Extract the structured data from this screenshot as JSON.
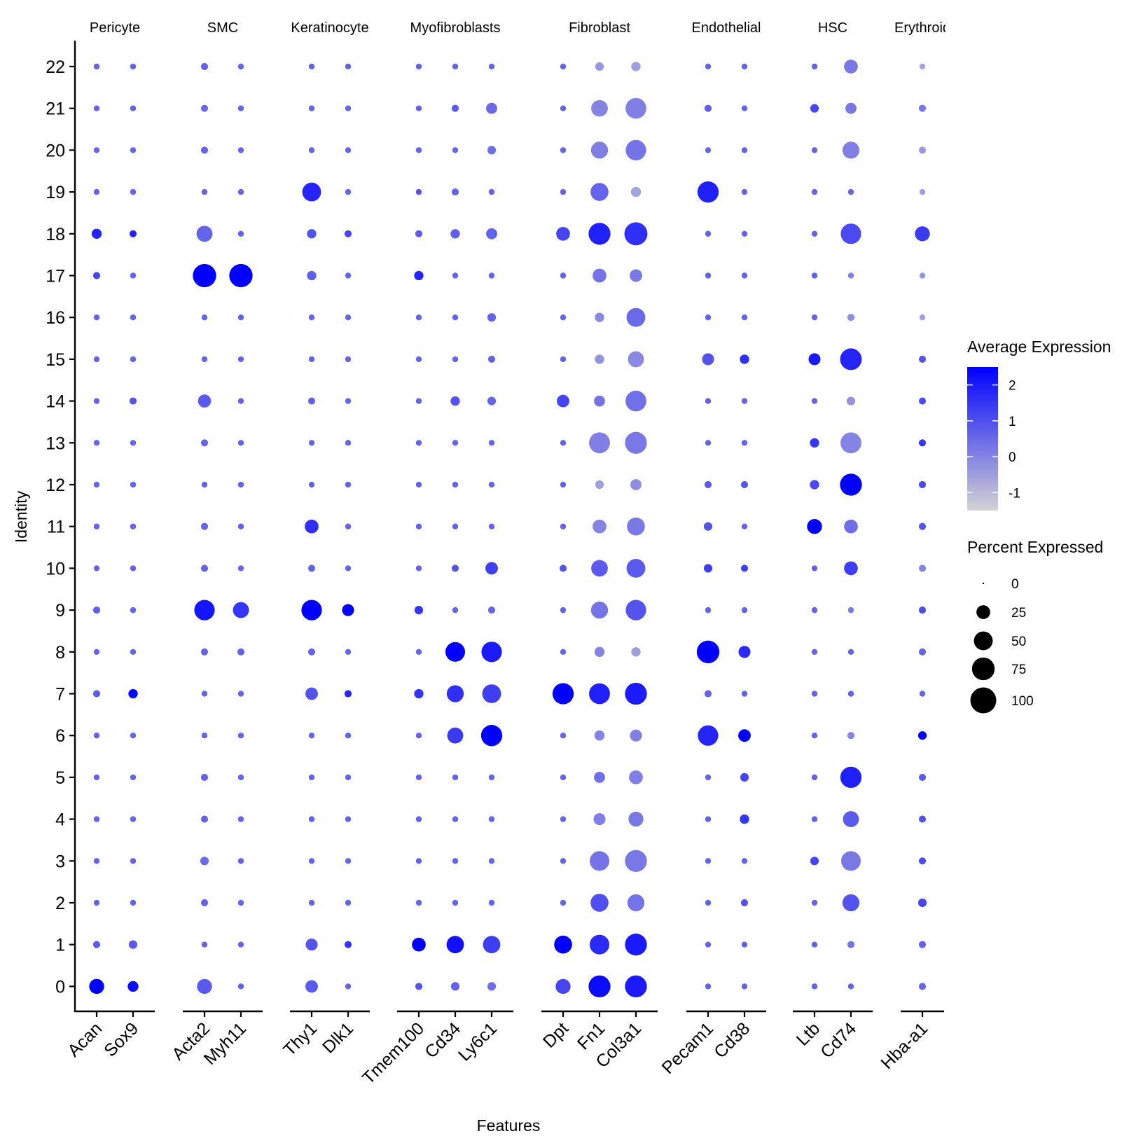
{
  "chart_data": {
    "type": "dotplot",
    "xlabel": "Features",
    "ylabel": "Identity",
    "identities": [
      "0",
      "1",
      "2",
      "3",
      "4",
      "5",
      "6",
      "7",
      "8",
      "9",
      "10",
      "11",
      "12",
      "13",
      "14",
      "15",
      "16",
      "17",
      "18",
      "19",
      "20",
      "21",
      "22"
    ],
    "groups": [
      {
        "label": "Pericyte",
        "features": [
          "Acan",
          "Sox9"
        ]
      },
      {
        "label": "SMC",
        "features": [
          "Acta2",
          "Myh11"
        ]
      },
      {
        "label": "Keratinocyte",
        "features": [
          "Thy1",
          "Dlk1"
        ]
      },
      {
        "label": "Myofibroblasts",
        "features": [
          "Tmem100",
          "Cd34",
          "Ly6c1"
        ]
      },
      {
        "label": "Fibroblast",
        "features": [
          "Dpt",
          "Fn1",
          "Col3a1"
        ]
      },
      {
        "label": "Endothelial",
        "features": [
          "Pecam1",
          "Cd38"
        ]
      },
      {
        "label": "HSC",
        "features": [
          "Ltb",
          "Cd74"
        ]
      },
      {
        "label": "Erythroid",
        "features": [
          "Hba-a1"
        ]
      }
    ],
    "features": [
      "Acan",
      "Sox9",
      "Acta2",
      "Myh11",
      "Thy1",
      "Dlk1",
      "Tmem100",
      "Cd34",
      "Ly6c1",
      "Dpt",
      "Fn1",
      "Col3a1",
      "Pecam1",
      "Cd38",
      "Ltb",
      "Cd74",
      "Hba-a1"
    ],
    "pct_expressed": [
      [
        30,
        14,
        30,
        3,
        20,
        3,
        5,
        8,
        8,
        30,
        70,
        70,
        3,
        3,
        3,
        3,
        5
      ],
      [
        5,
        8,
        3,
        3,
        18,
        5,
        25,
        42,
        42,
        45,
        55,
        70,
        3,
        3,
        3,
        5,
        5
      ],
      [
        3,
        3,
        5,
        3,
        3,
        3,
        3,
        3,
        3,
        3,
        45,
        40,
        3,
        5,
        3,
        40,
        8
      ],
      [
        3,
        3,
        8,
        3,
        3,
        3,
        3,
        3,
        3,
        3,
        55,
        70,
        3,
        3,
        8,
        55,
        5
      ],
      [
        3,
        3,
        5,
        3,
        3,
        3,
        3,
        3,
        3,
        3,
        18,
        30,
        3,
        10,
        3,
        35,
        5
      ],
      [
        3,
        3,
        5,
        3,
        3,
        3,
        3,
        3,
        3,
        3,
        15,
        25,
        3,
        8,
        3,
        65,
        5
      ],
      [
        3,
        3,
        3,
        3,
        3,
        3,
        3,
        35,
        65,
        3,
        12,
        18,
        60,
        20,
        3,
        5,
        8
      ],
      [
        5,
        10,
        3,
        3,
        20,
        5,
        10,
        40,
        50,
        65,
        63,
        70,
        5,
        3,
        3,
        3,
        3
      ],
      [
        3,
        3,
        5,
        5,
        5,
        3,
        3,
        55,
        60,
        3,
        12,
        10,
        75,
        18,
        3,
        3,
        5
      ],
      [
        5,
        3,
        60,
        35,
        60,
        18,
        8,
        3,
        5,
        3,
        40,
        60,
        3,
        3,
        3,
        3,
        5
      ],
      [
        3,
        3,
        5,
        3,
        5,
        3,
        3,
        5,
        20,
        5,
        38,
        50,
        8,
        5,
        3,
        25,
        5
      ],
      [
        3,
        3,
        5,
        3,
        25,
        3,
        3,
        3,
        3,
        3,
        25,
        45,
        8,
        3,
        30,
        25,
        5
      ],
      [
        3,
        3,
        3,
        3,
        3,
        3,
        3,
        3,
        3,
        3,
        8,
        15,
        5,
        5,
        10,
        70,
        5
      ],
      [
        3,
        3,
        5,
        3,
        3,
        3,
        3,
        3,
        3,
        3,
        63,
        70,
        3,
        3,
        10,
        63,
        5
      ],
      [
        3,
        5,
        22,
        3,
        5,
        3,
        3,
        10,
        8,
        20,
        15,
        62,
        3,
        3,
        3,
        8,
        5
      ],
      [
        3,
        3,
        3,
        3,
        3,
        3,
        3,
        3,
        5,
        3,
        10,
        35,
        18,
        10,
        18,
        68,
        5
      ],
      [
        3,
        3,
        3,
        3,
        3,
        3,
        3,
        3,
        8,
        3,
        10,
        50,
        3,
        3,
        3,
        5,
        3
      ],
      [
        5,
        3,
        80,
        80,
        10,
        3,
        10,
        3,
        3,
        3,
        25,
        20,
        3,
        3,
        3,
        3,
        3
      ],
      [
        12,
        5,
        35,
        3,
        10,
        5,
        5,
        10,
        15,
        25,
        70,
        78,
        3,
        3,
        3,
        60,
        30
      ],
      [
        3,
        3,
        3,
        3,
        50,
        3,
        3,
        5,
        3,
        3,
        45,
        12,
        65,
        3,
        3,
        3,
        3
      ],
      [
        3,
        3,
        5,
        3,
        3,
        3,
        3,
        3,
        8,
        3,
        40,
        60,
        3,
        3,
        3,
        40,
        5
      ],
      [
        3,
        3,
        5,
        3,
        3,
        3,
        3,
        5,
        15,
        3,
        38,
        62,
        5,
        3,
        8,
        15,
        5
      ],
      [
        3,
        3,
        5,
        3,
        3,
        3,
        3,
        3,
        3,
        3,
        8,
        10,
        3,
        3,
        3,
        25,
        3
      ]
    ],
    "avg_expression": [
      [
        2.5,
        2.3,
        0.8,
        0.6,
        0.8,
        0.6,
        0.9,
        0.6,
        0.4,
        1.2,
        2.3,
        2.0,
        0.6,
        0.6,
        0.6,
        0.6,
        0.6
      ],
      [
        0.8,
        0.8,
        0.6,
        0.6,
        0.9,
        1.5,
        2.5,
        2.2,
        1.3,
        2.5,
        1.7,
        2.0,
        0.6,
        0.6,
        0.6,
        0.3,
        0.6
      ],
      [
        0.6,
        0.6,
        0.6,
        0.6,
        0.6,
        0.6,
        0.6,
        0.6,
        0.6,
        0.6,
        1.0,
        0.3,
        0.6,
        0.9,
        0.6,
        0.9,
        1.2
      ],
      [
        0.6,
        0.6,
        0.5,
        0.6,
        0.6,
        0.6,
        0.6,
        0.6,
        0.6,
        0.6,
        0.3,
        0.2,
        0.6,
        0.6,
        1.2,
        0.2,
        1.1
      ],
      [
        0.6,
        0.6,
        0.6,
        0.6,
        0.6,
        0.6,
        0.6,
        0.6,
        0.6,
        0.6,
        0.1,
        0.2,
        0.6,
        1.5,
        0.6,
        0.8,
        0.9
      ],
      [
        0.6,
        0.6,
        0.6,
        0.6,
        0.6,
        0.6,
        0.6,
        0.6,
        0.6,
        0.6,
        0.4,
        0.1,
        0.6,
        1.2,
        0.6,
        1.9,
        0.8
      ],
      [
        0.6,
        0.6,
        0.6,
        0.6,
        0.6,
        0.6,
        0.6,
        1.4,
        2.5,
        0.6,
        0.0,
        0.1,
        1.8,
        2.5,
        0.6,
        0.0,
        2.5
      ],
      [
        0.8,
        2.4,
        0.6,
        0.6,
        0.9,
        1.8,
        1.5,
        1.6,
        1.3,
        2.5,
        1.9,
        2.0,
        0.6,
        0.6,
        0.6,
        0.6,
        0.6
      ],
      [
        0.6,
        0.6,
        0.6,
        0.6,
        0.6,
        0.6,
        0.6,
        2.5,
        2.0,
        0.6,
        0.0,
        -0.5,
        2.5,
        1.7,
        0.6,
        0.6,
        0.6
      ],
      [
        0.7,
        0.6,
        2.1,
        1.5,
        2.5,
        2.5,
        1.5,
        0.6,
        0.6,
        0.6,
        0.3,
        0.9,
        0.6,
        0.6,
        0.6,
        0.2,
        1.1
      ],
      [
        0.6,
        0.6,
        0.6,
        0.6,
        0.6,
        0.6,
        0.6,
        0.9,
        1.3,
        0.9,
        0.8,
        0.8,
        1.3,
        1.3,
        0.6,
        1.3,
        0.0
      ],
      [
        0.6,
        0.6,
        0.6,
        0.6,
        1.6,
        0.6,
        0.6,
        0.6,
        0.6,
        0.6,
        0.0,
        0.2,
        0.9,
        0.6,
        2.5,
        0.4,
        0.9
      ],
      [
        0.6,
        0.6,
        0.6,
        0.6,
        0.6,
        0.6,
        0.6,
        0.6,
        0.6,
        0.6,
        -0.5,
        -0.2,
        0.8,
        0.9,
        1.1,
        2.5,
        1.1
      ],
      [
        0.6,
        0.6,
        0.6,
        0.6,
        0.6,
        0.6,
        0.6,
        0.6,
        0.6,
        0.6,
        0.1,
        0.2,
        0.6,
        0.6,
        1.5,
        0.0,
        1.5
      ],
      [
        0.6,
        0.9,
        0.8,
        0.6,
        0.6,
        0.6,
        0.6,
        0.9,
        0.6,
        1.2,
        0.3,
        0.4,
        0.6,
        0.6,
        0.6,
        -0.3,
        1.1
      ],
      [
        0.6,
        0.6,
        0.6,
        0.6,
        0.6,
        0.6,
        0.6,
        0.6,
        0.6,
        0.6,
        -0.3,
        -0.1,
        0.9,
        1.6,
        2.0,
        1.8,
        0.9
      ],
      [
        0.6,
        0.6,
        0.6,
        0.6,
        0.6,
        0.6,
        0.6,
        0.6,
        0.6,
        0.6,
        -0.1,
        0.5,
        0.6,
        0.6,
        0.6,
        -0.2,
        -0.5
      ],
      [
        1.2,
        0.6,
        2.5,
        2.5,
        0.7,
        0.6,
        1.8,
        0.6,
        0.6,
        0.6,
        0.3,
        0.2,
        0.6,
        0.6,
        0.6,
        0.1,
        -0.3
      ],
      [
        1.8,
        1.8,
        0.6,
        0.6,
        0.9,
        1.2,
        0.8,
        0.7,
        0.6,
        1.2,
        1.9,
        1.6,
        0.6,
        0.6,
        0.6,
        1.1,
        1.4
      ],
      [
        0.6,
        0.6,
        0.6,
        0.6,
        1.8,
        0.6,
        0.9,
        0.6,
        0.6,
        0.6,
        0.6,
        -0.6,
        1.9,
        0.6,
        0.6,
        0.6,
        -0.5
      ],
      [
        0.6,
        0.6,
        0.6,
        0.6,
        0.6,
        0.6,
        0.6,
        0.6,
        0.4,
        0.6,
        0.1,
        0.3,
        0.6,
        0.6,
        0.6,
        0.1,
        -0.4
      ],
      [
        0.6,
        0.6,
        0.5,
        0.6,
        0.6,
        0.6,
        0.6,
        0.8,
        0.5,
        0.6,
        0.0,
        0.1,
        0.7,
        0.6,
        1.2,
        0.2,
        0.2
      ],
      [
        0.6,
        0.6,
        0.6,
        0.6,
        0.6,
        0.6,
        0.6,
        0.6,
        0.6,
        0.6,
        -0.4,
        -0.5,
        0.6,
        0.6,
        0.6,
        0.2,
        -0.6
      ]
    ],
    "color_legend": {
      "title": "Average Expression",
      "ticks": [
        2,
        1,
        0,
        -1
      ],
      "min": -1.5,
      "max": 2.5,
      "low_color": "#d3d3d3",
      "high_color": "#0000ff"
    },
    "size_legend": {
      "title": "Percent Expressed",
      "ticks": [
        0,
        25,
        50,
        75,
        100
      ]
    }
  }
}
